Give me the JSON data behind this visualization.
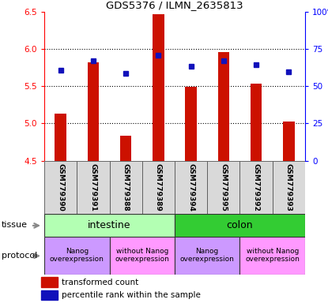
{
  "title": "GDS5376 / ILMN_2635813",
  "samples": [
    "GSM779390",
    "GSM779391",
    "GSM779388",
    "GSM779389",
    "GSM779394",
    "GSM779395",
    "GSM779392",
    "GSM779393"
  ],
  "red_values": [
    5.13,
    5.82,
    4.84,
    6.47,
    5.49,
    5.96,
    5.54,
    5.03
  ],
  "blue_values": [
    5.72,
    5.84,
    5.68,
    5.92,
    5.77,
    5.84,
    5.79,
    5.7
  ],
  "ylim_left": [
    4.5,
    6.5
  ],
  "ylim_right": [
    0,
    100
  ],
  "yticks_left": [
    4.5,
    5.0,
    5.5,
    6.0,
    6.5
  ],
  "yticks_right": [
    0,
    25,
    50,
    75,
    100
  ],
  "ytick_labels_right": [
    "0",
    "25",
    "50",
    "75",
    "100%"
  ],
  "grid_lines": [
    5.0,
    5.5,
    6.0
  ],
  "tissue_labels": [
    "intestine",
    "colon"
  ],
  "tissue_ranges": [
    [
      0,
      4
    ],
    [
      4,
      8
    ]
  ],
  "tissue_color_light": "#b3ffb3",
  "tissue_color_dark": "#33cc33",
  "protocol_labels": [
    "Nanog\noverexpression",
    "without Nanog\noverexpression",
    "Nanog\noverexpression",
    "without Nanog\noverexpression"
  ],
  "protocol_ranges": [
    [
      0,
      2
    ],
    [
      2,
      4
    ],
    [
      4,
      6
    ],
    [
      6,
      8
    ]
  ],
  "protocol_color1": "#cc99ff",
  "protocol_color2": "#ff99ff",
  "legend_red": "transformed count",
  "legend_blue": "percentile rank within the sample",
  "bar_color": "#cc1100",
  "dot_color": "#1111bb",
  "sample_bg": "#d9d9d9",
  "plot_bg": "#ffffff"
}
